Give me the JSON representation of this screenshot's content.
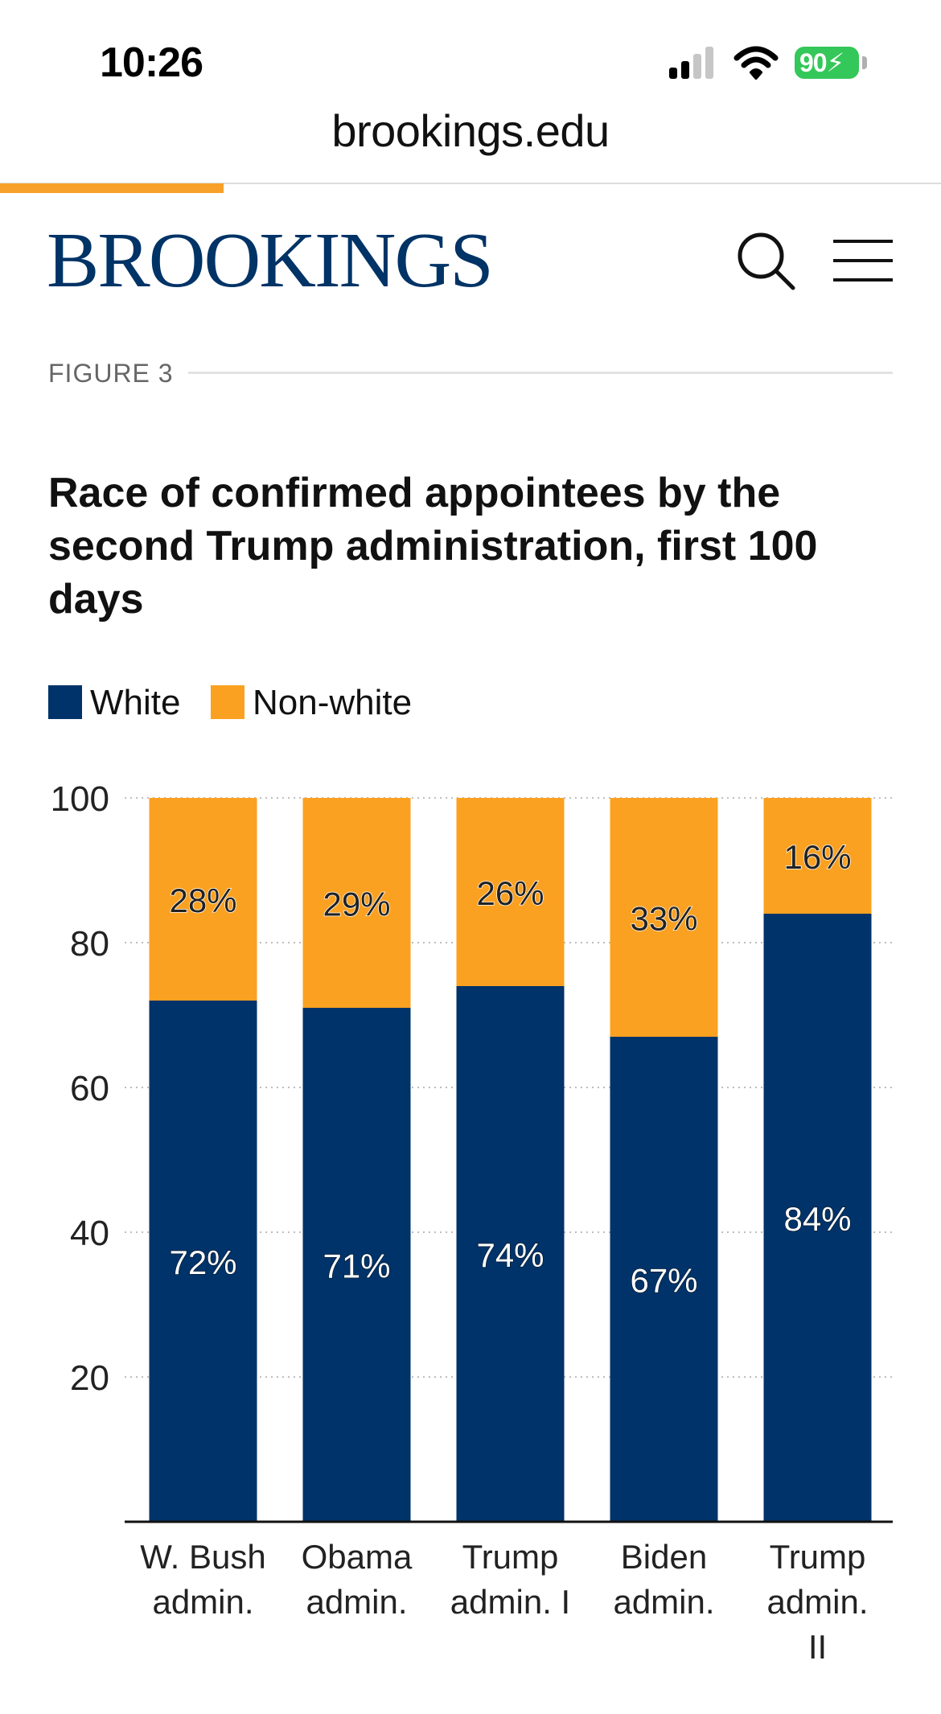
{
  "status_bar": {
    "time": "10:26",
    "battery": "90",
    "icons": [
      "signal-icon",
      "wifi-icon",
      "battery-icon"
    ],
    "battery_color": "#34c759"
  },
  "browser": {
    "url": "brookings.edu",
    "progress_color": "#f8a12a"
  },
  "header": {
    "logo": "BROOKINGS",
    "logo_color": "#003366",
    "icons": [
      "search-icon",
      "menu-icon"
    ]
  },
  "figure": {
    "label": "FIGURE 3",
    "title": "Race of confirmed appointees by the second Trump administration, first 100 days"
  },
  "chart_data": {
    "type": "bar",
    "stacked": true,
    "categories": [
      "W. Bush admin.",
      "Obama admin.",
      "Trump admin. I",
      "Biden admin.",
      "Trump admin. II"
    ],
    "category_lines": [
      [
        "W. Bush",
        "admin."
      ],
      [
        "Obama",
        "admin."
      ],
      [
        "Trump",
        "admin. I"
      ],
      [
        "Biden",
        "admin."
      ],
      [
        "Trump",
        "admin.",
        "II"
      ]
    ],
    "series": [
      {
        "name": "White",
        "color": "#003369",
        "values": [
          72,
          71,
          74,
          67,
          84
        ],
        "labels": [
          "72%",
          "71%",
          "74%",
          "67%",
          "84%"
        ]
      },
      {
        "name": "Non-white",
        "color": "#fba121",
        "values": [
          28,
          29,
          26,
          33,
          16
        ],
        "labels": [
          "28%",
          "29%",
          "26%",
          "33%",
          "16%"
        ]
      }
    ],
    "ylim": [
      0,
      100
    ],
    "yticks": [
      20,
      40,
      60,
      80,
      100
    ],
    "ytick_labels": [
      "20",
      "40",
      "60",
      "80",
      "100"
    ],
    "grid": "dotted horizontal",
    "legend": "top-left"
  }
}
